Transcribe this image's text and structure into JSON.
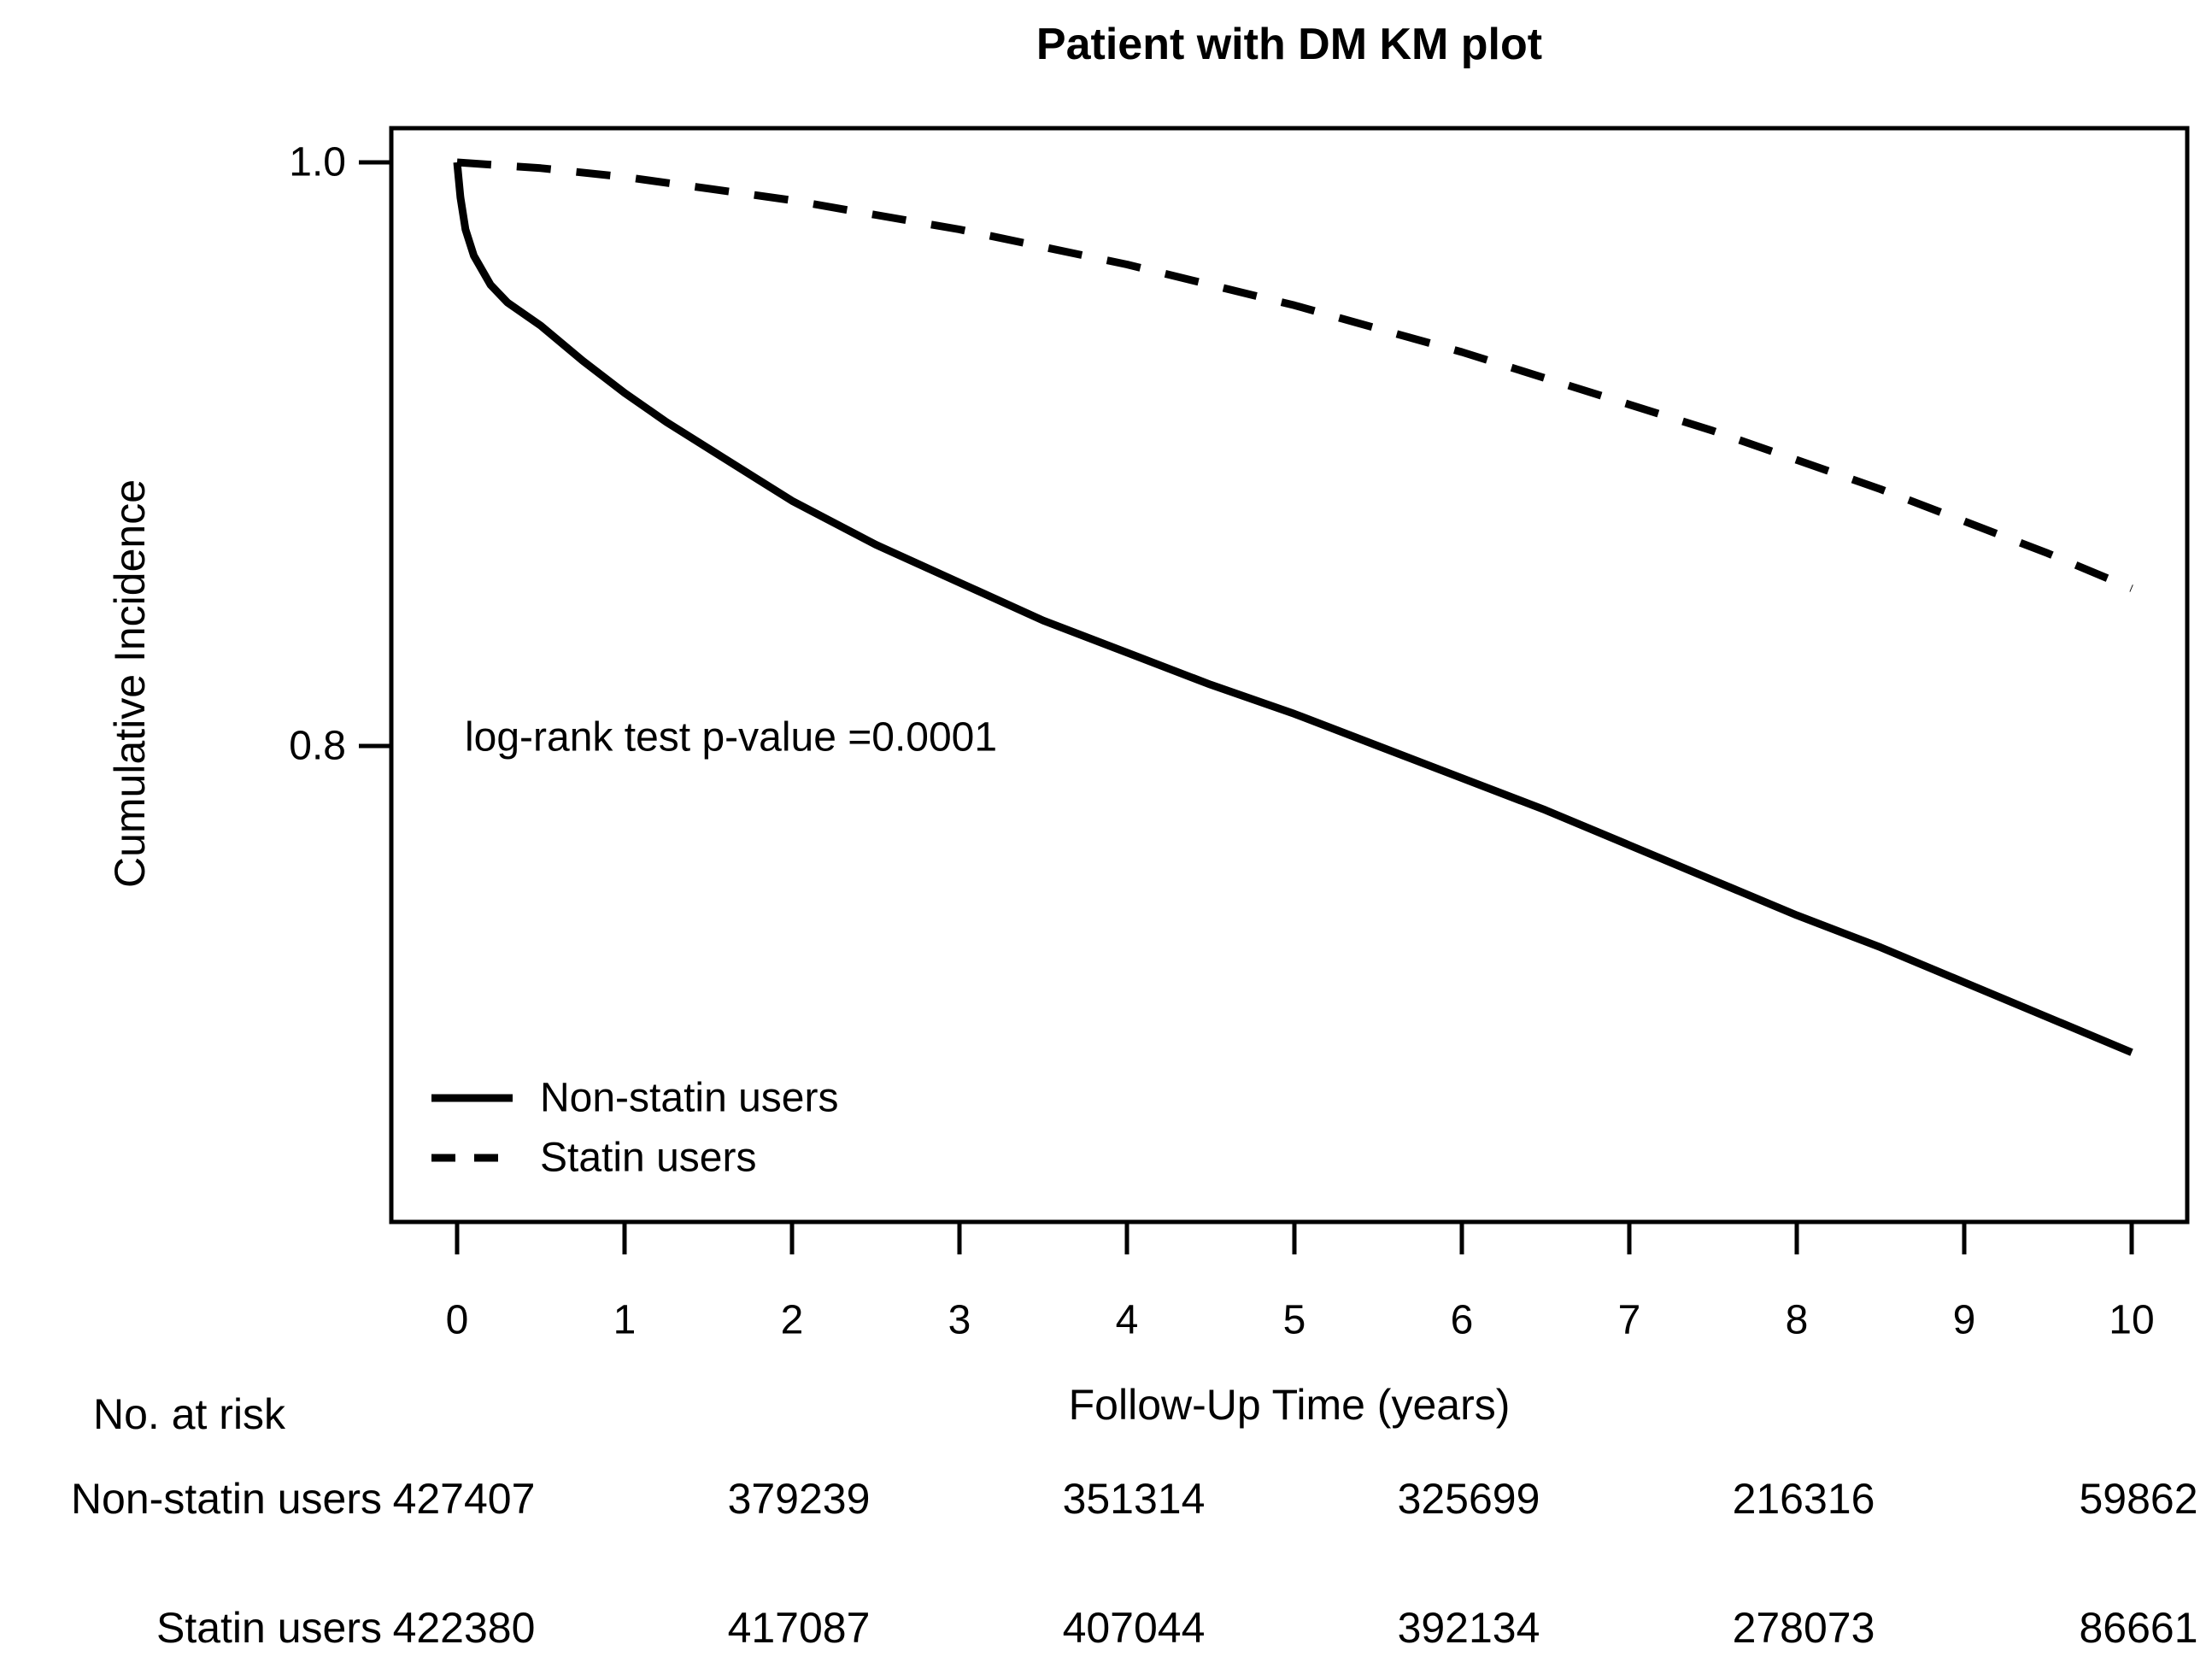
{
  "title": "Patient with DM KM plot",
  "annotation": {
    "text": "log-rank test p-value =0.0001",
    "color": "#ff0000"
  },
  "axes": {
    "y_label": "Cumulative Incidence",
    "x_label": "Follow-Up Time (years)",
    "y_ticks": [
      "1.0",
      "0.8"
    ],
    "y_tick_values": [
      1.0,
      0.8
    ],
    "x_ticks": [
      "0",
      "1",
      "2",
      "3",
      "4",
      "5",
      "6",
      "7",
      "8",
      "9",
      "10"
    ],
    "x_tick_values": [
      0,
      1,
      2,
      3,
      4,
      5,
      6,
      7,
      8,
      9,
      10
    ]
  },
  "legend": {
    "items": [
      {
        "label": "Non-statin users",
        "style": "solid"
      },
      {
        "label": "Statin users",
        "style": "dashed"
      }
    ]
  },
  "chart_data": {
    "type": "line",
    "title": "Patient with DM KM plot",
    "xlabel": "Follow-Up Time (years)",
    "ylabel": "Cumulative Incidence",
    "xlim": [
      -0.4,
      10.4
    ],
    "ylim": [
      0.637,
      1.012
    ],
    "x_ticks": [
      0,
      1,
      2,
      3,
      4,
      5,
      6,
      7,
      8,
      9,
      10
    ],
    "y_ticks": [
      1.0,
      0.8
    ],
    "grid": false,
    "legend_position": "inside-bottom-left",
    "annotation": "log-rank test p-value =0.0001",
    "annotation_color": "#ff0000",
    "line_color": "#000000",
    "series": [
      {
        "name": "Non-statin users",
        "style": "solid",
        "color": "#000000",
        "points": [
          [
            0,
            1.0
          ],
          [
            0.02,
            0.988
          ],
          [
            0.05,
            0.977
          ],
          [
            0.1,
            0.968
          ],
          [
            0.2,
            0.958
          ],
          [
            0.3,
            0.952
          ],
          [
            0.5,
            0.944
          ],
          [
            0.75,
            0.932
          ],
          [
            1,
            0.921
          ],
          [
            1.25,
            0.911
          ],
          [
            1.5,
            0.902
          ],
          [
            2,
            0.884
          ],
          [
            2.5,
            0.869
          ],
          [
            3,
            0.856
          ],
          [
            3.5,
            0.843
          ],
          [
            4,
            0.832
          ],
          [
            4.5,
            0.821
          ],
          [
            5,
            0.811
          ],
          [
            5.5,
            0.8
          ],
          [
            6,
            0.789
          ],
          [
            6.5,
            0.778
          ],
          [
            7,
            0.766
          ],
          [
            7.5,
            0.754
          ],
          [
            8,
            0.742
          ],
          [
            8.5,
            0.731
          ],
          [
            9,
            0.719
          ],
          [
            9.5,
            0.707
          ],
          [
            10,
            0.695
          ]
        ]
      },
      {
        "name": "Statin users",
        "style": "dashed",
        "color": "#000000",
        "points": [
          [
            0,
            1.0
          ],
          [
            0.5,
            0.998
          ],
          [
            1,
            0.995
          ],
          [
            1.5,
            0.991
          ],
          [
            2,
            0.987
          ],
          [
            2.5,
            0.982
          ],
          [
            3,
            0.977
          ],
          [
            3.5,
            0.971
          ],
          [
            4,
            0.965
          ],
          [
            4.5,
            0.958
          ],
          [
            5,
            0.951
          ],
          [
            5.5,
            0.943
          ],
          [
            6,
            0.935
          ],
          [
            6.5,
            0.926
          ],
          [
            7,
            0.917
          ],
          [
            7.5,
            0.908
          ],
          [
            8,
            0.898
          ],
          [
            8.5,
            0.888
          ],
          [
            9,
            0.877
          ],
          [
            9.5,
            0.866
          ],
          [
            10,
            0.854
          ]
        ]
      }
    ]
  },
  "risk_table": {
    "header": "No. at risk",
    "time_points": [
      0,
      2,
      4,
      6,
      8,
      10
    ],
    "rows": [
      {
        "label": "Non-statin users",
        "values": [
          "427407",
          "379239",
          "351314",
          "325699",
          "216316",
          "59862"
        ]
      },
      {
        "label": "Statin users",
        "values": [
          "422380",
          "417087",
          "407044",
          "392134",
          "278073",
          "86661"
        ]
      }
    ]
  }
}
